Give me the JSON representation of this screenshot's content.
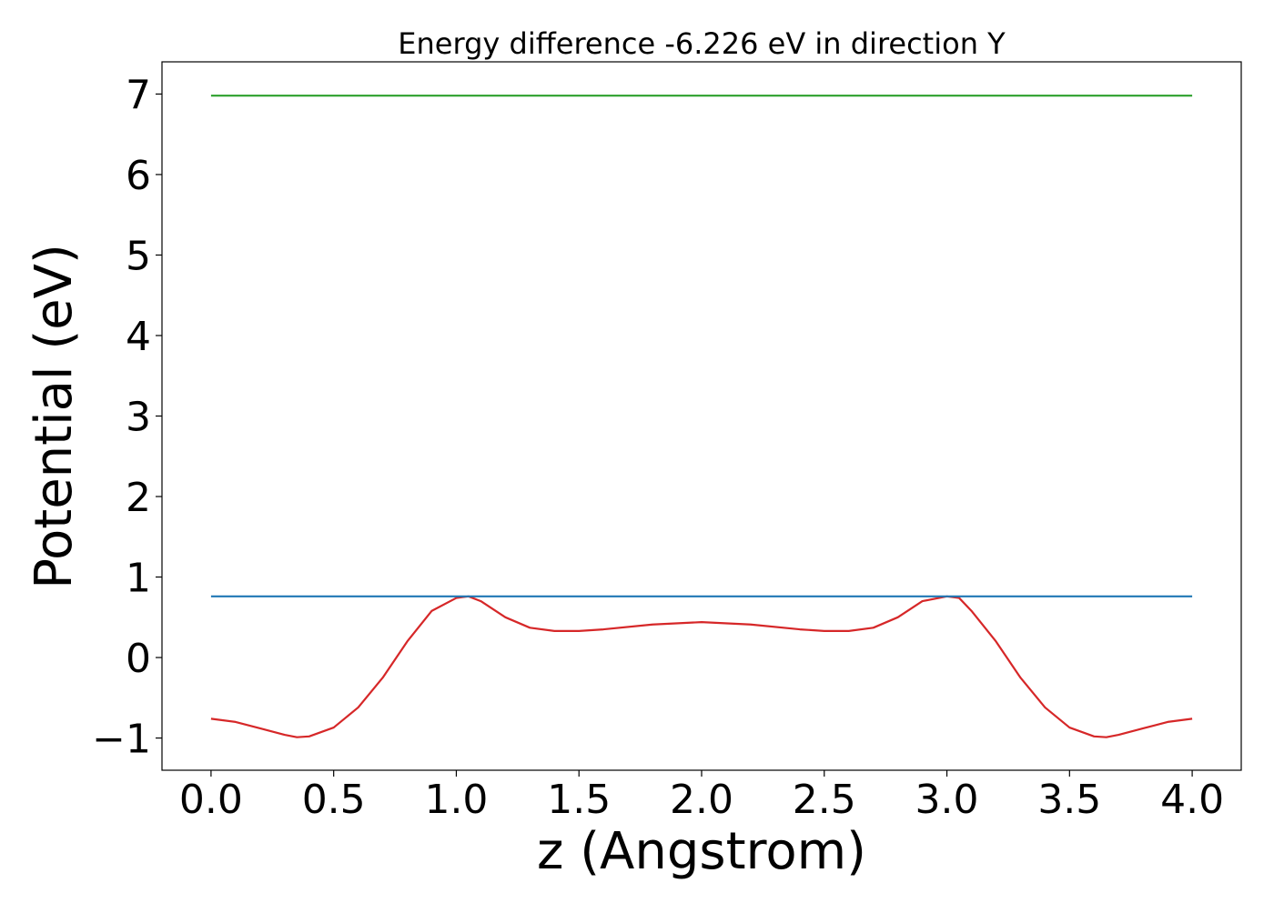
{
  "chart_data": {
    "type": "line",
    "title": "Energy difference -6.226 eV in direction Y",
    "xlabel": "z (Angstrom)",
    "ylabel": "Potential (eV)",
    "xlim": [
      -0.2,
      4.2
    ],
    "ylim": [
      -1.4,
      7.4
    ],
    "x_ticks": [
      0.0,
      0.5,
      1.0,
      1.5,
      2.0,
      2.5,
      3.0,
      3.5,
      4.0
    ],
    "x_tick_labels": [
      "0.0",
      "0.5",
      "1.0",
      "1.5",
      "2.0",
      "2.5",
      "3.0",
      "3.5",
      "4.0"
    ],
    "y_ticks": [
      -1,
      0,
      1,
      2,
      3,
      4,
      5,
      6,
      7
    ],
    "y_tick_labels": [
      "−1",
      "0",
      "1",
      "2",
      "3",
      "4",
      "5",
      "6",
      "7"
    ],
    "grid": false,
    "legend": "none",
    "series": [
      {
        "color": "#d62728",
        "x": [
          0.0,
          0.1,
          0.2,
          0.3,
          0.35,
          0.4,
          0.5,
          0.6,
          0.7,
          0.8,
          0.9,
          1.0,
          1.05,
          1.1,
          1.2,
          1.3,
          1.4,
          1.5,
          1.6,
          1.8,
          2.0,
          2.2,
          2.4,
          2.5,
          2.6,
          2.7,
          2.8,
          2.9,
          3.0,
          3.05,
          3.1,
          3.2,
          3.3,
          3.4,
          3.5,
          3.6,
          3.65,
          3.7,
          3.8,
          3.9,
          4.0
        ],
        "y": [
          -0.76,
          -0.8,
          -0.88,
          -0.96,
          -0.99,
          -0.98,
          -0.87,
          -0.62,
          -0.25,
          0.2,
          0.58,
          0.74,
          0.76,
          0.7,
          0.5,
          0.37,
          0.33,
          0.33,
          0.35,
          0.41,
          0.44,
          0.41,
          0.35,
          0.33,
          0.33,
          0.37,
          0.5,
          0.7,
          0.76,
          0.74,
          0.58,
          0.2,
          -0.25,
          -0.62,
          -0.87,
          -0.98,
          -0.99,
          -0.96,
          -0.88,
          -0.8,
          -0.76
        ]
      },
      {
        "color": "#1f77b4",
        "x": [
          0.0,
          4.0
        ],
        "y": [
          0.76,
          0.76
        ]
      },
      {
        "color": "#2ca02c",
        "x": [
          0.0,
          4.0
        ],
        "y": [
          6.98,
          6.98
        ]
      }
    ]
  }
}
